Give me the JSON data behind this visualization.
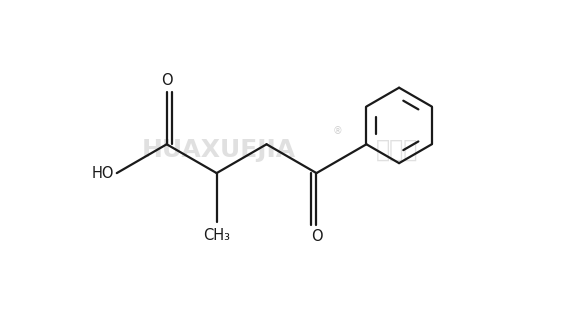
{
  "background_color": "#ffffff",
  "line_color": "#1a1a1a",
  "line_width": 1.6,
  "label_fontsize": 10.5,
  "watermark1": "HUAXUEJIA",
  "watermark2": "化学加",
  "fig_width": 5.64,
  "fig_height": 3.2,
  "dpi": 100,
  "xlim": [
    0,
    10
  ],
  "ylim": [
    0,
    6
  ]
}
